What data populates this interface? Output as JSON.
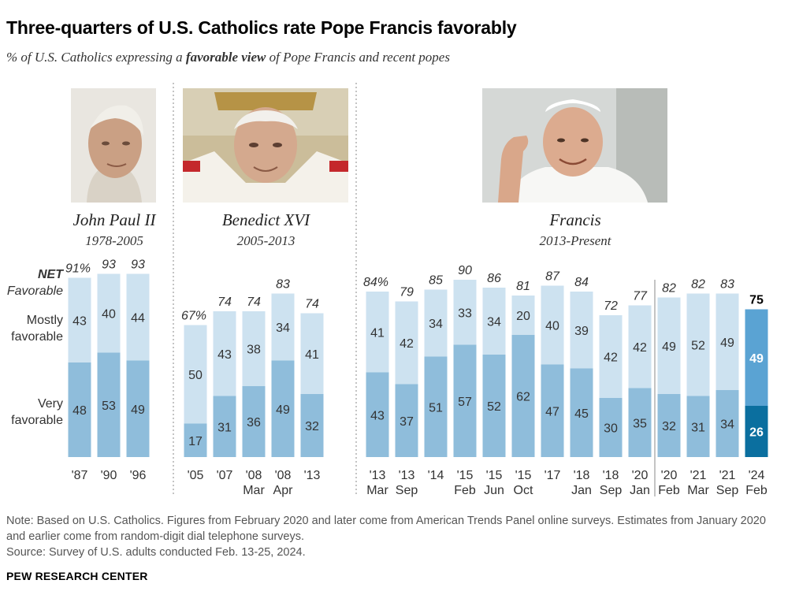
{
  "title": "Three-quarters of U.S. Catholics rate Pope Francis favorably",
  "subtitle_pre": "% of U.S. Catholics expressing a ",
  "subtitle_bold": "favorable view",
  "subtitle_post": " of Pope Francis and recent popes",
  "popes": [
    {
      "name": "John Paul II",
      "years": "1978-2005",
      "photo": "john-paul-ii-photo"
    },
    {
      "name": "Benedict XVI",
      "years": "2005-2013",
      "photo": "benedict-xvi-photo"
    },
    {
      "name": "Francis",
      "years": "2013-Present",
      "photo": "francis-photo"
    }
  ],
  "row_labels": {
    "net_line1": "NET",
    "net_line2": "Favorable",
    "mostly_line1": "Mostly",
    "mostly_line2": "favorable",
    "very_line1": "Very",
    "very_line2": "favorable"
  },
  "colors": {
    "very": "#8fbddb",
    "mostly": "#cde2f0",
    "very_highlight": "#0b6f9f",
    "mostly_highlight": "#5aa3d3",
    "separator": "#888888"
  },
  "chart_data": {
    "type": "bar",
    "stacked": true,
    "ylim": [
      0,
      100
    ],
    "series_names": [
      "Very favorable",
      "Mostly favorable"
    ],
    "net_label": "NET Favorable",
    "bars": [
      {
        "year": "'87",
        "month": "",
        "pope": "John Paul II",
        "very": 48,
        "mostly": 43,
        "net": "91%"
      },
      {
        "year": "'90",
        "month": "",
        "pope": "John Paul II",
        "very": 53,
        "mostly": 40,
        "net": "93"
      },
      {
        "year": "'96",
        "month": "",
        "pope": "John Paul II",
        "very": 49,
        "mostly": 44,
        "net": "93"
      },
      {
        "year": "'05",
        "month": "",
        "pope": "Benedict XVI",
        "very": 17,
        "mostly": 50,
        "net": "67%"
      },
      {
        "year": "'07",
        "month": "",
        "pope": "Benedict XVI",
        "very": 31,
        "mostly": 43,
        "net": "74"
      },
      {
        "year": "'08",
        "month": "Mar",
        "pope": "Benedict XVI",
        "very": 36,
        "mostly": 38,
        "net": "74"
      },
      {
        "year": "'08",
        "month": "Apr",
        "pope": "Benedict XVI",
        "very": 49,
        "mostly": 34,
        "net": "83"
      },
      {
        "year": "'13",
        "month": "",
        "pope": "Benedict XVI",
        "very": 32,
        "mostly": 41,
        "net": "74"
      },
      {
        "year": "'13",
        "month": "Mar",
        "pope": "Francis",
        "very": 43,
        "mostly": 41,
        "net": "84%"
      },
      {
        "year": "'13",
        "month": "Sep",
        "pope": "Francis",
        "very": 37,
        "mostly": 42,
        "net": "79"
      },
      {
        "year": "'14",
        "month": "",
        "pope": "Francis",
        "very": 51,
        "mostly": 34,
        "net": "85"
      },
      {
        "year": "'15",
        "month": "Feb",
        "pope": "Francis",
        "very": 57,
        "mostly": 33,
        "net": "90"
      },
      {
        "year": "'15",
        "month": "Jun",
        "pope": "Francis",
        "very": 52,
        "mostly": 34,
        "net": "86"
      },
      {
        "year": "'15",
        "month": "Oct",
        "pope": "Francis",
        "very": 62,
        "mostly": 20,
        "net": "81"
      },
      {
        "year": "'17",
        "month": "",
        "pope": "Francis",
        "very": 47,
        "mostly": 40,
        "net": "87"
      },
      {
        "year": "'18",
        "month": "Jan",
        "pope": "Francis",
        "very": 45,
        "mostly": 39,
        "net": "84"
      },
      {
        "year": "'18",
        "month": "Sep",
        "pope": "Francis",
        "very": 30,
        "mostly": 42,
        "net": "72"
      },
      {
        "year": "'20",
        "month": "Jan",
        "pope": "Francis",
        "very": 35,
        "mostly": 42,
        "net": "77"
      },
      {
        "year": "'20",
        "month": "Feb",
        "pope": "Francis",
        "very": 32,
        "mostly": 49,
        "net": "82"
      },
      {
        "year": "'21",
        "month": "Mar",
        "pope": "Francis",
        "very": 31,
        "mostly": 52,
        "net": "82"
      },
      {
        "year": "'21",
        "month": "Sep",
        "pope": "Francis",
        "very": 34,
        "mostly": 49,
        "net": "83"
      },
      {
        "year": "'24",
        "month": "Feb",
        "pope": "Francis",
        "very": 26,
        "mostly": 49,
        "net": "75",
        "highlight": true
      }
    ]
  },
  "note": "Note: Based on U.S. Catholics. Figures from February 2020 and later come from American Trends Panel online surveys. Estimates from January 2020 and earlier come from random-digit dial telephone surveys.",
  "source": "Source: Survey of U.S. adults conducted Feb. 13-25, 2024.",
  "brand": "PEW RESEARCH CENTER"
}
